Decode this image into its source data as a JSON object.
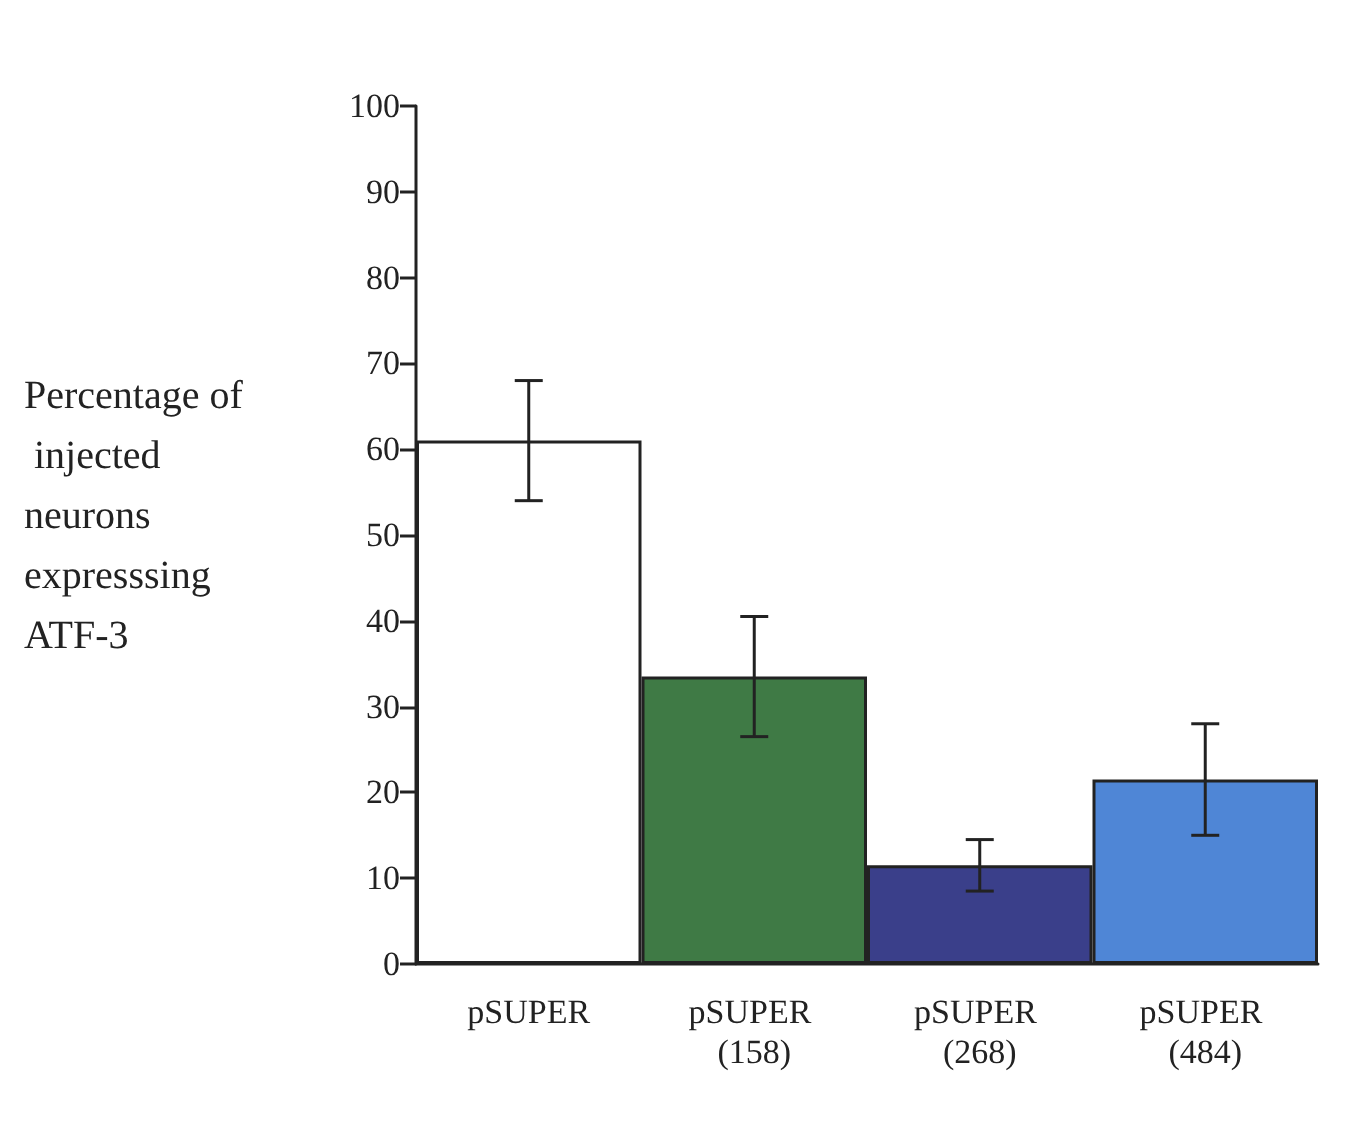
{
  "chart_data": {
    "type": "bar",
    "ylabel": "Percentage of injected neurons expresssing ATF-3",
    "categories": [
      "pSUPER",
      "pSUPER (158)",
      "pSUPER (268)",
      "pSUPER (484)"
    ],
    "values": [
      61,
      33.5,
      11.5,
      21.5
    ],
    "colors": [
      "#ffffff",
      "#3f7a45",
      "#3a3f8a",
      "#4f86d6"
    ],
    "errors": [
      7,
      7,
      3,
      6.5
    ],
    "ylim": [
      0,
      100
    ],
    "yticks": [
      0,
      10,
      20,
      30,
      40,
      50,
      60,
      70,
      80,
      90,
      100
    ],
    "grid": false
  }
}
